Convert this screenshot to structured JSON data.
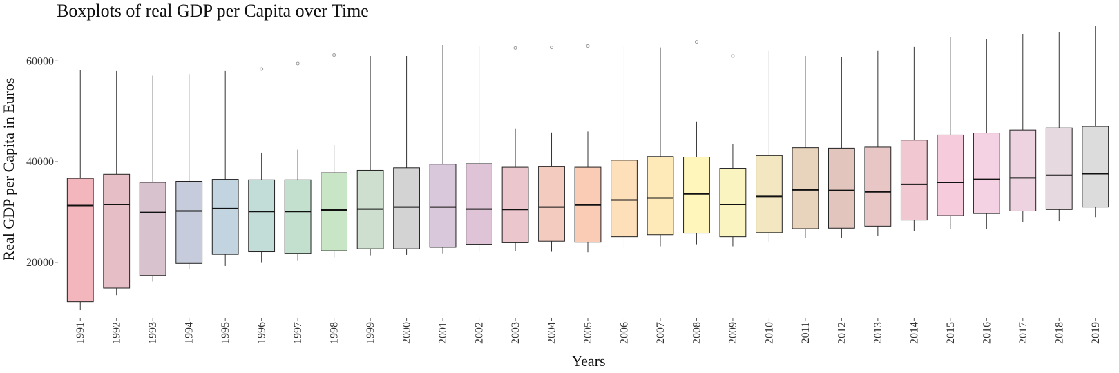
{
  "chart_data": {
    "type": "boxplot",
    "title": "Boxplots of real GDP per Capita over Time",
    "xlabel": "Years",
    "ylabel": "Real GDP per Capita in Euros",
    "ylim": [
      9000,
      68000
    ],
    "yticks": [
      20000,
      40000,
      60000
    ],
    "ytick_labels": [
      "20000",
      "40000",
      "60000"
    ],
    "grid": false,
    "categories": [
      "1991",
      "1992",
      "1993",
      "1994",
      "1995",
      "1996",
      "1997",
      "1998",
      "1999",
      "2000",
      "2001",
      "2002",
      "2003",
      "2004",
      "2005",
      "2006",
      "2007",
      "2008",
      "2009",
      "2010",
      "2011",
      "2012",
      "2013",
      "2014",
      "2015",
      "2016",
      "2017",
      "2018",
      "2019"
    ],
    "boxes": [
      {
        "low": 10500,
        "q1": 12200,
        "median": 31300,
        "q3": 36700,
        "high": 58200,
        "outliers": [],
        "color": "#f4b6bd"
      },
      {
        "low": 13500,
        "q1": 14900,
        "median": 31500,
        "q3": 37500,
        "high": 58000,
        "outliers": [],
        "color": "#e6bfc6"
      },
      {
        "low": 16200,
        "q1": 17400,
        "median": 29900,
        "q3": 35900,
        "high": 57100,
        "outliers": [],
        "color": "#d8c2cd"
      },
      {
        "low": 18600,
        "q1": 19800,
        "median": 30200,
        "q3": 36100,
        "high": 57400,
        "outliers": [],
        "color": "#c6ccdc"
      },
      {
        "low": 19300,
        "q1": 21600,
        "median": 30700,
        "q3": 36500,
        "high": 58000,
        "outliers": [],
        "color": "#c1d4df"
      },
      {
        "low": 19900,
        "q1": 22100,
        "median": 30100,
        "q3": 36400,
        "high": 41800,
        "outliers": [
          58400
        ],
        "color": "#c2dcd8"
      },
      {
        "low": 20300,
        "q1": 21800,
        "median": 30100,
        "q3": 36400,
        "high": 42400,
        "outliers": [
          59500
        ],
        "color": "#c3e0cf"
      },
      {
        "low": 21000,
        "q1": 22300,
        "median": 30400,
        "q3": 37800,
        "high": 43300,
        "outliers": [
          61200
        ],
        "color": "#c8e5c6"
      },
      {
        "low": 21400,
        "q1": 22700,
        "median": 30600,
        "q3": 38300,
        "high": 61000,
        "outliers": [],
        "color": "#cfdfcf"
      },
      {
        "low": 21500,
        "q1": 22700,
        "median": 31000,
        "q3": 38800,
        "high": 61000,
        "outliers": [],
        "color": "#d3d3d3"
      },
      {
        "low": 21800,
        "q1": 23000,
        "median": 31000,
        "q3": 39500,
        "high": 63200,
        "outliers": [],
        "color": "#d9c7db"
      },
      {
        "low": 22100,
        "q1": 23600,
        "median": 30600,
        "q3": 39600,
        "high": 63000,
        "outliers": [],
        "color": "#dfc4d8"
      },
      {
        "low": 22200,
        "q1": 23900,
        "median": 30500,
        "q3": 38900,
        "high": 46500,
        "outliers": [
          62600
        ],
        "color": "#ebc6cc"
      },
      {
        "low": 22100,
        "q1": 24200,
        "median": 31000,
        "q3": 39000,
        "high": 45800,
        "outliers": [
          62700
        ],
        "color": "#f3cbbf"
      },
      {
        "low": 22000,
        "q1": 24000,
        "median": 31400,
        "q3": 38900,
        "high": 46000,
        "outliers": [
          63000
        ],
        "color": "#fbccb5"
      },
      {
        "low": 22600,
        "q1": 25100,
        "median": 32400,
        "q3": 40300,
        "high": 62900,
        "outliers": [],
        "color": "#fde0b9"
      },
      {
        "low": 23200,
        "q1": 25500,
        "median": 32800,
        "q3": 41000,
        "high": 62700,
        "outliers": [],
        "color": "#feeab9"
      },
      {
        "low": 23600,
        "q1": 25800,
        "median": 33600,
        "q3": 40900,
        "high": 48000,
        "outliers": [
          63800
        ],
        "color": "#fff6bb"
      },
      {
        "low": 23200,
        "q1": 25100,
        "median": 31500,
        "q3": 38700,
        "high": 43500,
        "outliers": [
          61000
        ],
        "color": "#faf5c0"
      },
      {
        "low": 24000,
        "q1": 25900,
        "median": 33100,
        "q3": 41200,
        "high": 62000,
        "outliers": [],
        "color": "#f2e7c1"
      },
      {
        "low": 24800,
        "q1": 26700,
        "median": 34400,
        "q3": 42800,
        "high": 61000,
        "outliers": [],
        "color": "#e8d4bd"
      },
      {
        "low": 24800,
        "q1": 26800,
        "median": 34300,
        "q3": 42700,
        "high": 60800,
        "outliers": [],
        "color": "#e2c6bd"
      },
      {
        "low": 25200,
        "q1": 27200,
        "median": 34000,
        "q3": 42900,
        "high": 62000,
        "outliers": [],
        "color": "#e8c6c6"
      },
      {
        "low": 26200,
        "q1": 28400,
        "median": 35500,
        "q3": 44300,
        "high": 62800,
        "outliers": [],
        "color": "#f1c8d1"
      },
      {
        "low": 26700,
        "q1": 29300,
        "median": 35900,
        "q3": 45300,
        "high": 64800,
        "outliers": [],
        "color": "#f6cbdc"
      },
      {
        "low": 26700,
        "q1": 29700,
        "median": 36500,
        "q3": 45700,
        "high": 64300,
        "outliers": [],
        "color": "#f5d1e4"
      },
      {
        "low": 28000,
        "q1": 30200,
        "median": 36800,
        "q3": 46300,
        "high": 65400,
        "outliers": [],
        "color": "#ecd3df"
      },
      {
        "low": 28200,
        "q1": 30500,
        "median": 37300,
        "q3": 46700,
        "high": 65800,
        "outliers": [],
        "color": "#e6d9df"
      },
      {
        "low": 29000,
        "q1": 31000,
        "median": 37600,
        "q3": 47000,
        "high": 67000,
        "outliers": [],
        "color": "#dcdcdc"
      }
    ]
  }
}
